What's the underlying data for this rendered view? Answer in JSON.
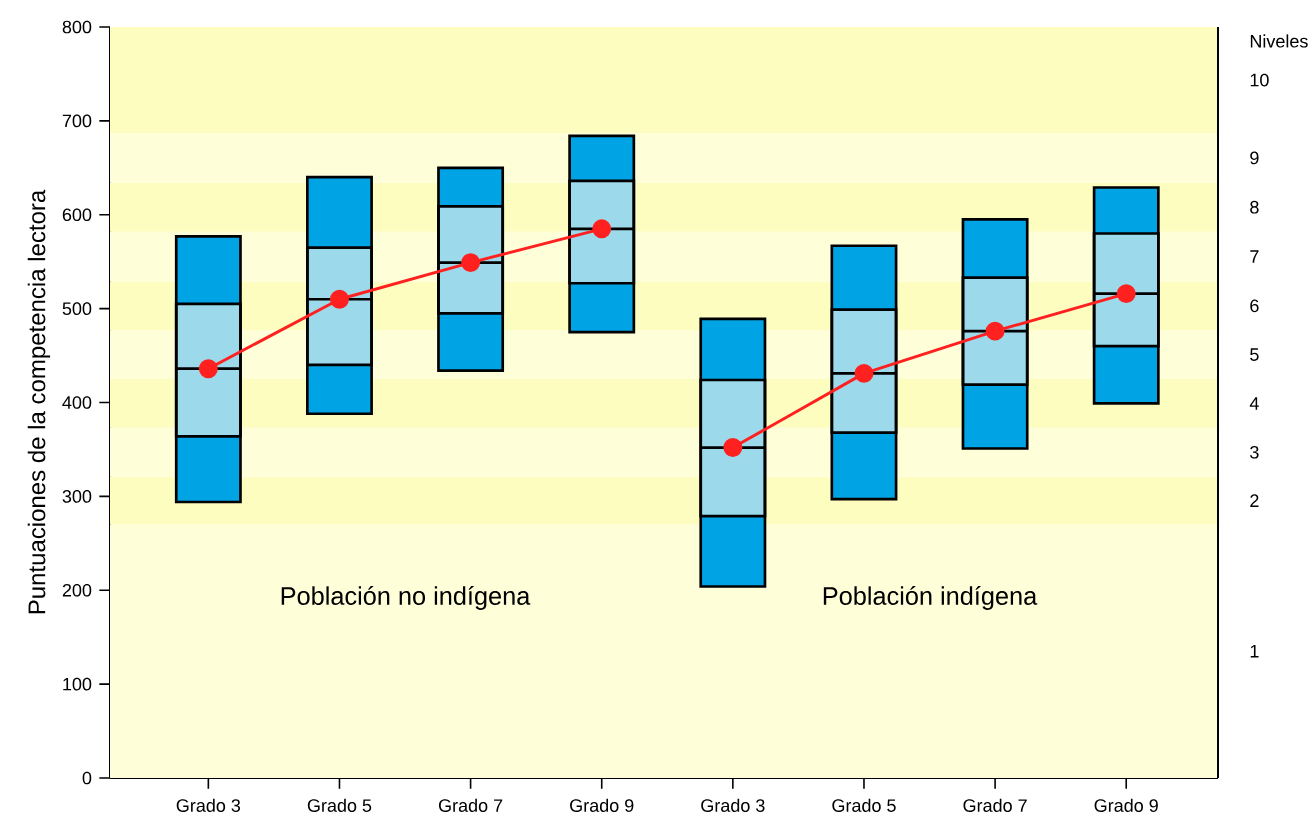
{
  "chart_data": {
    "type": "box",
    "ylabel": "Puntuaciones de la competencia lectora",
    "y2label": "Niveles",
    "categories": [
      "Grado 3",
      "Grado 5",
      "Grado 7",
      "Grado 9",
      "Grado 3",
      "Grado 5",
      "Grado 7",
      "Grado 9"
    ],
    "color": "#00a3e4",
    "ylim": [
      0,
      800
    ],
    "yticks": [
      0,
      100,
      200,
      300,
      400,
      500,
      600,
      700,
      800
    ],
    "series": [
      {
        "type": "box",
        "color": "#9cd9ea",
        "boxes": [
          {
            "low": 294,
            "q1": 364,
            "median": 436,
            "q3": 505,
            "high": 577
          },
          {
            "low": 388,
            "q1": 440,
            "median": 510,
            "q3": 565,
            "high": 640
          },
          {
            "low": 434,
            "q1": 495,
            "median": 549,
            "q3": 609,
            "high": 650
          },
          {
            "low": 475,
            "q1": 527,
            "median": 585,
            "q3": 636,
            "high": 684
          },
          {
            "low": 204,
            "q1": 279,
            "median": 352,
            "q3": 424,
            "high": 489
          },
          {
            "low": 297,
            "q1": 368,
            "median": 431,
            "q3": 499,
            "high": 567
          },
          {
            "low": 351,
            "q1": 419,
            "median": 476,
            "q3": 533,
            "high": 595
          },
          {
            "low": 399,
            "q1": 460,
            "median": 516,
            "q3": 580,
            "high": 629
          }
        ]
      },
      {
        "type": "line",
        "color": "#ff2020",
        "marker": "circle",
        "values": [
          436,
          510,
          549,
          585,
          null,
          null,
          null,
          null
        ]
      },
      {
        "type": "line",
        "color": "#ff2020",
        "marker": "circle",
        "values": [
          null,
          null,
          null,
          null,
          352,
          431,
          476,
          516
        ]
      }
    ],
    "bands": [
      {
        "axis": "y",
        "from": 0,
        "to": 270,
        "label": "1",
        "color": "#fefed9"
      },
      {
        "axis": "y",
        "from": 270,
        "to": 321,
        "label": "2",
        "color": "#fdfdbf"
      },
      {
        "axis": "y",
        "from": 321,
        "to": 373,
        "label": "3",
        "color": "#fefed9"
      },
      {
        "axis": "y",
        "from": 373,
        "to": 425,
        "label": "4",
        "color": "#fdfdbf"
      },
      {
        "axis": "y",
        "from": 425,
        "to": 477,
        "label": "5",
        "color": "#fefed9"
      },
      {
        "axis": "y",
        "from": 477,
        "to": 529,
        "label": "6",
        "color": "#fdfdbf"
      },
      {
        "axis": "y",
        "from": 529,
        "to": 582,
        "label": "7",
        "color": "#fefed9"
      },
      {
        "axis": "y",
        "from": 582,
        "to": 634,
        "label": "8",
        "color": "#fdfdbf"
      },
      {
        "axis": "y",
        "from": 634,
        "to": 687,
        "label": "9",
        "color": "#fefed9"
      },
      {
        "axis": "y",
        "from": 687,
        "to": 800,
        "label": "10",
        "color": "#fdfdbf"
      }
    ],
    "annotations": [
      "Población no indígena",
      "Población indígena"
    ]
  }
}
